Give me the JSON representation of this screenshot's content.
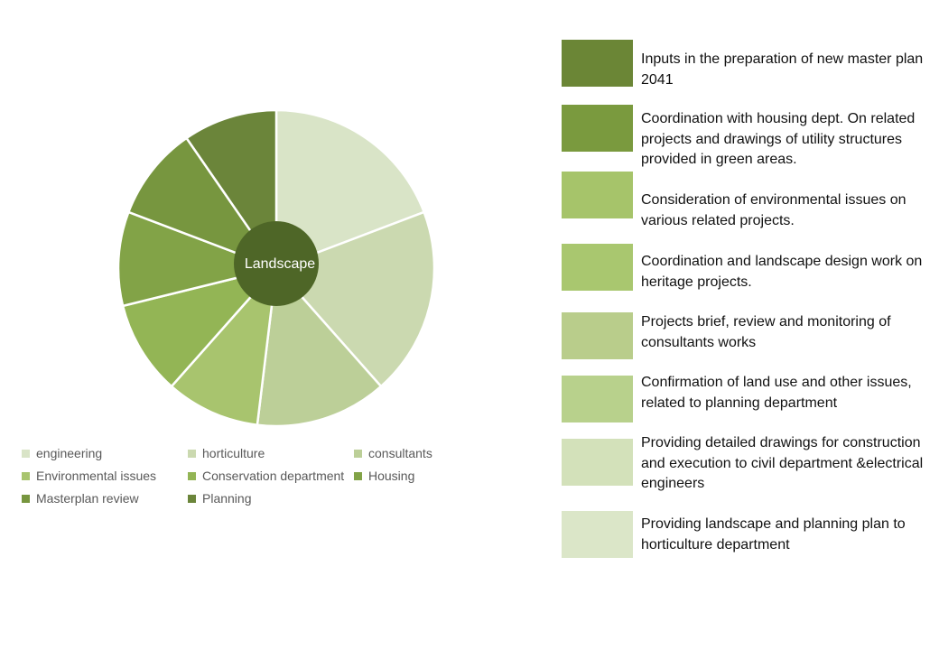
{
  "center_label": "Landscape",
  "chart_data": {
    "type": "pie",
    "slices": [
      {
        "label": "engineering",
        "value": 2,
        "color": "#d9e4c7"
      },
      {
        "label": "horticulture",
        "value": 2,
        "color": "#cbd9b0"
      },
      {
        "label": "consultants",
        "value": 1.4,
        "color": "#bccf98"
      },
      {
        "label": "Environmental issues",
        "value": 1,
        "color": "#a8c46e"
      },
      {
        "label": "Conservation department",
        "value": 1,
        "color": "#93b555"
      },
      {
        "label": "Housing",
        "value": 1,
        "color": "#82a347"
      },
      {
        "label": "Masterplan review",
        "value": 1,
        "color": "#77963f"
      },
      {
        "label": "Planning",
        "value": 1,
        "color": "#6b853a"
      }
    ],
    "center_color": "#4e6627"
  },
  "legend": [
    {
      "label": "engineering",
      "color": "#d9e4c7"
    },
    {
      "label": "horticulture",
      "color": "#cbd9b0"
    },
    {
      "label": "consultants",
      "color": "#bccf98"
    },
    {
      "label": "Environmental issues",
      "color": "#a8c46e"
    },
    {
      "label": "Conservation department",
      "color": "#93b555"
    },
    {
      "label": "Housing",
      "color": "#82a347"
    },
    {
      "label": "Masterplan review",
      "color": "#77963f"
    },
    {
      "label": "Planning",
      "color": "#6b853a"
    }
  ],
  "boxes": [
    {
      "text": "Inputs in the preparation of new master plan 2041",
      "color": "#6b8636"
    },
    {
      "text": "Coordination with housing dept. On related projects and drawings of utility structures provided in green areas.",
      "color": "#7a9a3e"
    },
    {
      "text": "Consideration of environmental issues on various related projects.",
      "color": "#a6c46a"
    },
    {
      "text": "Coordination and landscape design work on heritage projects.",
      "color": "#a9c76f"
    },
    {
      "text": "Projects brief, review and monitoring of consultants works",
      "color": "#b9cd8b"
    },
    {
      "text": "Confirmation of land use and other issues, related to planning department",
      "color": "#b8d18c"
    },
    {
      "text": "Providing detailed drawings for construction and execution to civil department &electrical engineers",
      "color": "#d3e1ba"
    },
    {
      "text": "Providing landscape and planning plan to horticulture department",
      "color": "#dbe6c8"
    }
  ]
}
